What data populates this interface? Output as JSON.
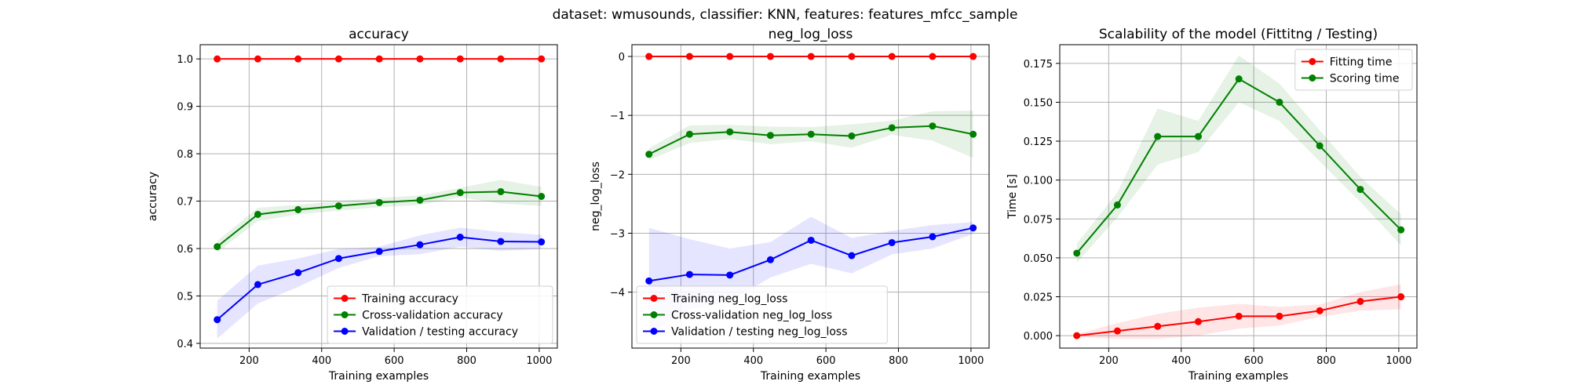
{
  "suptitle": "dataset: wmusounds, classifier: KNN, features: features_mfcc_sample",
  "chart_data": [
    {
      "type": "line",
      "title": "accuracy",
      "xlabel": "Training examples",
      "ylabel": "accuracy",
      "xlim": [
        65,
        1050
      ],
      "ylim": [
        0.39,
        1.03
      ],
      "xticks": [
        200,
        400,
        600,
        800,
        1000
      ],
      "yticks": [
        0.4,
        0.5,
        0.6,
        0.7,
        0.8,
        0.9,
        1.0
      ],
      "ytick_labels": [
        "0.4",
        "0.5",
        "0.6",
        "0.7",
        "0.8",
        "0.9",
        "1.0"
      ],
      "grid": true,
      "legend": "lower-right",
      "x": [
        112,
        224,
        335,
        447,
        559,
        671,
        782,
        894,
        1006
      ],
      "series": [
        {
          "name": "Training accuracy",
          "color": "#ff0000",
          "values": [
            1.0,
            1.0,
            1.0,
            1.0,
            1.0,
            1.0,
            1.0,
            1.0,
            1.0
          ],
          "std": [
            0,
            0,
            0,
            0,
            0,
            0,
            0,
            0,
            0
          ]
        },
        {
          "name": "Cross-validation accuracy",
          "color": "#008000",
          "values": [
            0.604,
            0.672,
            0.682,
            0.69,
            0.697,
            0.702,
            0.718,
            0.72,
            0.71
          ],
          "std": [
            0.012,
            0.014,
            0.01,
            0.01,
            0.01,
            0.01,
            0.01,
            0.025,
            0.02
          ]
        },
        {
          "name": "Validation / testing accuracy",
          "color": "#0000ff",
          "values": [
            0.45,
            0.524,
            0.549,
            0.579,
            0.594,
            0.608,
            0.624,
            0.615,
            0.614
          ],
          "std": [
            0.04,
            0.04,
            0.03,
            0.02,
            0.01,
            0.02,
            0.02,
            0.02,
            0.015
          ]
        }
      ]
    },
    {
      "type": "line",
      "title": "neg_log_loss",
      "xlabel": "Training examples",
      "ylabel": "neg_log_loss",
      "xlim": [
        65,
        1050
      ],
      "ylim": [
        -4.95,
        0.2
      ],
      "xticks": [
        200,
        400,
        600,
        800,
        1000
      ],
      "yticks": [
        -4,
        -3,
        -2,
        -1,
        0
      ],
      "ytick_labels": [
        "−4",
        "−3",
        "−2",
        "−1",
        "0"
      ],
      "grid": true,
      "legend": "lower-left",
      "x": [
        112,
        224,
        335,
        447,
        559,
        671,
        782,
        894,
        1006
      ],
      "series": [
        {
          "name": "Training neg_log_loss",
          "color": "#ff0000",
          "values": [
            0,
            0,
            0,
            0,
            0,
            0,
            0,
            0,
            0
          ],
          "std": [
            0,
            0,
            0,
            0,
            0,
            0,
            0,
            0,
            0
          ]
        },
        {
          "name": "Cross-validation neg_log_loss",
          "color": "#008000",
          "values": [
            -1.66,
            -1.32,
            -1.28,
            -1.34,
            -1.32,
            -1.35,
            -1.21,
            -1.18,
            -1.32
          ],
          "std": [
            0.1,
            0.15,
            0.12,
            0.15,
            0.12,
            0.2,
            0.12,
            0.25,
            0.4
          ]
        },
        {
          "name": "Validation / testing neg_log_loss",
          "color": "#0000ff",
          "values": [
            -3.81,
            -3.7,
            -3.71,
            -3.45,
            -3.12,
            -3.38,
            -3.16,
            -3.06,
            -2.91
          ],
          "std": [
            0.9,
            0.6,
            0.45,
            0.3,
            0.4,
            0.3,
            0.2,
            0.2,
            0.1
          ]
        }
      ]
    },
    {
      "type": "line",
      "title": "Scalability of the model (Fittitng / Testing)",
      "xlabel": "Training examples",
      "ylabel": "Time [s]",
      "xlim": [
        65,
        1050
      ],
      "ylim": [
        -0.008,
        0.187
      ],
      "xticks": [
        200,
        400,
        600,
        800,
        1000
      ],
      "yticks": [
        0,
        0.025,
        0.05,
        0.075,
        0.1,
        0.125,
        0.15,
        0.175
      ],
      "ytick_labels": [
        "0.000",
        "0.025",
        "0.050",
        "0.075",
        "0.100",
        "0.125",
        "0.150",
        "0.175"
      ],
      "grid": true,
      "legend": "top-right",
      "x": [
        112,
        224,
        335,
        447,
        559,
        671,
        782,
        894,
        1006
      ],
      "series": [
        {
          "name": "Fitting time",
          "color": "#ff0000",
          "values": [
            0.0,
            0.003,
            0.006,
            0.009,
            0.0125,
            0.0125,
            0.016,
            0.022,
            0.025
          ],
          "std": [
            0.001,
            0.005,
            0.008,
            0.009,
            0.008,
            0.006,
            0.004,
            0.006,
            0.008
          ]
        },
        {
          "name": "Scoring time",
          "color": "#008000",
          "values": [
            0.053,
            0.084,
            0.128,
            0.128,
            0.165,
            0.15,
            0.122,
            0.094,
            0.068
          ],
          "std": [
            0.006,
            0.008,
            0.018,
            0.01,
            0.015,
            0.012,
            0.01,
            0.008,
            0.01
          ]
        }
      ]
    }
  ]
}
